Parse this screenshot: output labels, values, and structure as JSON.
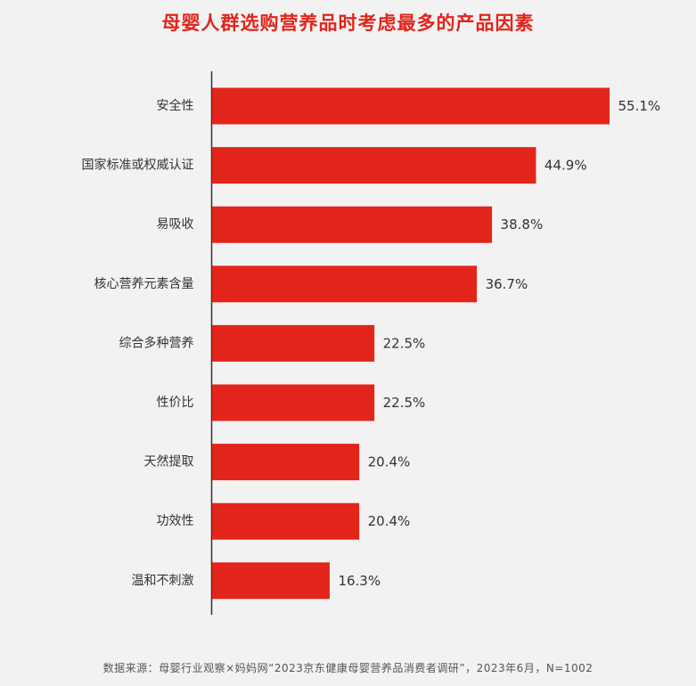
{
  "title": "母婴人群选购营养品时考虑最多的产品因素",
  "footer": "数据来源：母婴行业观察×妈妈网“2023京东健康母婴营养品消费者调研”，2023年6月，N=1002",
  "colors": {
    "bar": "#e3241b",
    "title": "#e3241b",
    "background": "#f2f2f2",
    "axis": "#333333",
    "label": "#333333"
  },
  "chart_data": {
    "type": "bar",
    "orientation": "horizontal",
    "categories": [
      "安全性",
      "国家标准或权威认证",
      "易吸收",
      "核心营养元素含量",
      "综合多种营养",
      "性价比",
      "天然提取",
      "功效性",
      "温和不刺激"
    ],
    "values": [
      55.1,
      44.9,
      38.8,
      36.7,
      22.5,
      22.5,
      20.4,
      20.4,
      16.3
    ],
    "value_labels": [
      "55.1%",
      "44.9%",
      "38.8%",
      "36.7%",
      "22.5%",
      "22.5%",
      "20.4%",
      "20.4%",
      "16.3%"
    ],
    "xlim": [
      0,
      60
    ],
    "grid": false,
    "legend": "none"
  }
}
